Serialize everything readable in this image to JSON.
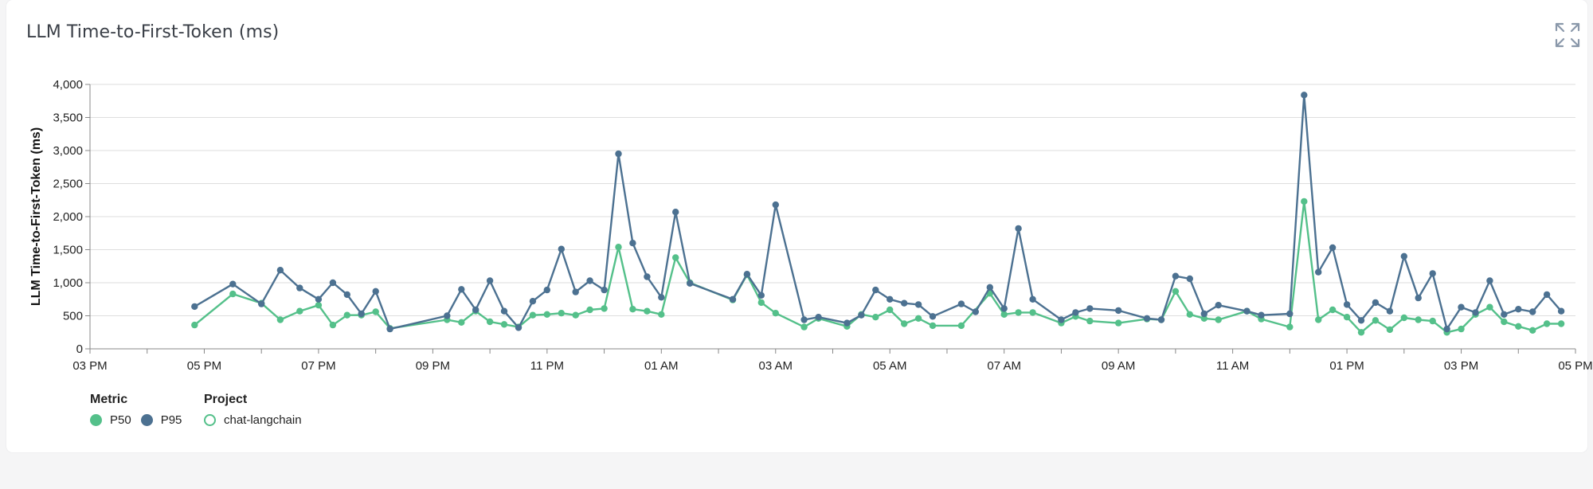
{
  "card": {
    "title": "LLM Time-to-First-Token (ms)",
    "expand_icon": "expand-icon"
  },
  "chart_data": {
    "type": "line",
    "title": "LLM Time-to-First-Token (ms)",
    "ylabel": "LLM Time-to-First-Token (ms)",
    "xlabel": "",
    "ylim": [
      0,
      4000
    ],
    "y_ticks": [
      "0",
      "500",
      "1,000",
      "1,500",
      "2,000",
      "2,500",
      "3,000",
      "3,500",
      "4,000"
    ],
    "y_tick_values": [
      0,
      500,
      1000,
      1500,
      2000,
      2500,
      3000,
      3500,
      4000
    ],
    "xlim": [
      0,
      26
    ],
    "x_ticks": [
      "03 PM",
      "05 PM",
      "07 PM",
      "09 PM",
      "11 PM",
      "01 AM",
      "03 AM",
      "05 AM",
      "07 AM",
      "09 AM",
      "11 AM",
      "01 PM",
      "03 PM",
      "05 PM"
    ],
    "x_tick_values": [
      0,
      2,
      4,
      6,
      8,
      10,
      12,
      14,
      16,
      18,
      20,
      22,
      24,
      26
    ],
    "grid": true,
    "legend_position": "bottom-left",
    "x_unit": "hours since 03 PM",
    "series": [
      {
        "name": "P50",
        "color": "#54c08a",
        "points": [
          [
            1.83,
            360
          ],
          [
            2.5,
            830
          ],
          [
            3.0,
            690
          ],
          [
            3.33,
            440
          ],
          [
            3.67,
            570
          ],
          [
            4.0,
            660
          ],
          [
            4.25,
            360
          ],
          [
            4.5,
            510
          ],
          [
            4.75,
            510
          ],
          [
            5.0,
            560
          ],
          [
            5.25,
            310
          ],
          [
            6.25,
            440
          ],
          [
            6.5,
            400
          ],
          [
            6.75,
            570
          ],
          [
            7.0,
            410
          ],
          [
            7.25,
            370
          ],
          [
            7.5,
            330
          ],
          [
            7.75,
            510
          ],
          [
            8.0,
            520
          ],
          [
            8.25,
            540
          ],
          [
            8.5,
            510
          ],
          [
            8.75,
            590
          ],
          [
            9.0,
            610
          ],
          [
            9.25,
            1540
          ],
          [
            9.5,
            600
          ],
          [
            9.75,
            570
          ],
          [
            10.0,
            520
          ],
          [
            10.25,
            1380
          ],
          [
            10.5,
            1000
          ],
          [
            11.25,
            740
          ],
          [
            11.5,
            1120
          ],
          [
            11.75,
            700
          ],
          [
            12.0,
            540
          ],
          [
            12.5,
            330
          ],
          [
            12.75,
            460
          ],
          [
            13.25,
            340
          ],
          [
            13.5,
            520
          ],
          [
            13.75,
            480
          ],
          [
            14.0,
            590
          ],
          [
            14.25,
            380
          ],
          [
            14.5,
            460
          ],
          [
            14.75,
            350
          ],
          [
            15.25,
            350
          ],
          [
            15.75,
            840
          ],
          [
            16.0,
            520
          ],
          [
            16.25,
            550
          ],
          [
            16.5,
            550
          ],
          [
            17.0,
            390
          ],
          [
            17.25,
            490
          ],
          [
            17.5,
            420
          ],
          [
            18.0,
            390
          ],
          [
            18.5,
            450
          ],
          [
            18.75,
            440
          ],
          [
            19.0,
            870
          ],
          [
            19.25,
            520
          ],
          [
            19.5,
            460
          ],
          [
            19.75,
            440
          ],
          [
            20.25,
            570
          ],
          [
            20.5,
            450
          ],
          [
            21.0,
            330
          ],
          [
            21.25,
            2230
          ],
          [
            21.5,
            440
          ],
          [
            21.75,
            590
          ],
          [
            22.0,
            480
          ],
          [
            22.25,
            250
          ],
          [
            22.5,
            430
          ],
          [
            22.75,
            290
          ],
          [
            23.0,
            470
          ],
          [
            23.25,
            440
          ],
          [
            23.5,
            420
          ],
          [
            23.75,
            250
          ],
          [
            24.0,
            300
          ],
          [
            24.25,
            520
          ],
          [
            24.5,
            630
          ],
          [
            24.75,
            410
          ],
          [
            25.0,
            340
          ],
          [
            25.25,
            280
          ],
          [
            25.5,
            380
          ],
          [
            25.75,
            380
          ]
        ]
      },
      {
        "name": "P95",
        "color": "#4c7191",
        "points": [
          [
            1.83,
            640
          ],
          [
            2.5,
            980
          ],
          [
            3.0,
            680
          ],
          [
            3.33,
            1190
          ],
          [
            3.67,
            920
          ],
          [
            4.0,
            750
          ],
          [
            4.25,
            1000
          ],
          [
            4.5,
            820
          ],
          [
            4.75,
            530
          ],
          [
            5.0,
            870
          ],
          [
            5.25,
            300
          ],
          [
            6.25,
            500
          ],
          [
            6.5,
            900
          ],
          [
            6.75,
            590
          ],
          [
            7.0,
            1030
          ],
          [
            7.25,
            570
          ],
          [
            7.5,
            320
          ],
          [
            7.75,
            720
          ],
          [
            8.0,
            890
          ],
          [
            8.25,
            1510
          ],
          [
            8.5,
            860
          ],
          [
            8.75,
            1030
          ],
          [
            9.0,
            890
          ],
          [
            9.25,
            2950
          ],
          [
            9.5,
            1600
          ],
          [
            9.75,
            1090
          ],
          [
            10.0,
            780
          ],
          [
            10.25,
            2070
          ],
          [
            10.5,
            990
          ],
          [
            11.25,
            750
          ],
          [
            11.5,
            1130
          ],
          [
            11.75,
            810
          ],
          [
            12.0,
            2180
          ],
          [
            12.5,
            440
          ],
          [
            12.75,
            480
          ],
          [
            13.25,
            390
          ],
          [
            13.5,
            510
          ],
          [
            13.75,
            890
          ],
          [
            14.0,
            750
          ],
          [
            14.25,
            690
          ],
          [
            14.5,
            670
          ],
          [
            14.75,
            490
          ],
          [
            15.25,
            680
          ],
          [
            15.5,
            560
          ],
          [
            15.75,
            930
          ],
          [
            16.0,
            610
          ],
          [
            16.25,
            1820
          ],
          [
            16.5,
            750
          ],
          [
            17.0,
            440
          ],
          [
            17.25,
            550
          ],
          [
            17.5,
            610
          ],
          [
            18.0,
            580
          ],
          [
            18.5,
            460
          ],
          [
            18.75,
            440
          ],
          [
            19.0,
            1100
          ],
          [
            19.25,
            1060
          ],
          [
            19.5,
            530
          ],
          [
            19.75,
            660
          ],
          [
            20.25,
            570
          ],
          [
            20.5,
            510
          ],
          [
            21.0,
            530
          ],
          [
            21.25,
            3840
          ],
          [
            21.5,
            1160
          ],
          [
            21.75,
            1530
          ],
          [
            22.0,
            670
          ],
          [
            22.25,
            430
          ],
          [
            22.5,
            700
          ],
          [
            22.75,
            570
          ],
          [
            23.0,
            1400
          ],
          [
            23.25,
            770
          ],
          [
            23.5,
            1140
          ],
          [
            23.75,
            300
          ],
          [
            24.0,
            630
          ],
          [
            24.25,
            550
          ],
          [
            24.5,
            1030
          ],
          [
            24.75,
            520
          ],
          [
            25.0,
            600
          ],
          [
            25.25,
            560
          ],
          [
            25.5,
            820
          ],
          [
            25.75,
            570
          ]
        ]
      }
    ]
  },
  "legend": {
    "metric_title": "Metric",
    "metric_items": [
      {
        "label": "P50",
        "color": "#54c08a"
      },
      {
        "label": "P95",
        "color": "#4c7191"
      }
    ],
    "project_title": "Project",
    "project_items": [
      {
        "label": "chat-langchain",
        "color": "#54c08a"
      }
    ]
  }
}
